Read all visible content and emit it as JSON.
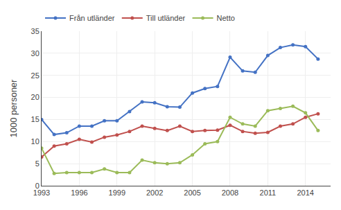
{
  "chart_data": {
    "type": "line",
    "ylabel": "1000 personer",
    "x": [
      1993,
      1994,
      1995,
      1996,
      1997,
      1998,
      1999,
      2000,
      2001,
      2002,
      2003,
      2004,
      2005,
      2006,
      2007,
      2008,
      2009,
      2010,
      2011,
      2012,
      2013,
      2014,
      2015
    ],
    "series": [
      {
        "name": "Från utländer",
        "color": "#4472C4",
        "values": [
          15.0,
          11.6,
          12.0,
          13.5,
          13.5,
          14.7,
          14.7,
          16.8,
          19.0,
          18.8,
          17.9,
          17.8,
          21.0,
          22.0,
          22.5,
          29.1,
          26.0,
          25.7,
          29.5,
          31.3,
          31.9,
          31.5,
          28.7
        ]
      },
      {
        "name": "Till utländer",
        "color": "#C0504D",
        "values": [
          6.5,
          9.0,
          9.5,
          10.5,
          9.9,
          11.0,
          11.5,
          12.3,
          13.5,
          13.0,
          12.5,
          13.5,
          12.3,
          12.5,
          12.6,
          13.7,
          12.3,
          11.9,
          12.1,
          13.5,
          14.0,
          15.5,
          16.3
        ]
      },
      {
        "name": "Netto",
        "color": "#9BBB59",
        "values": [
          8.5,
          2.8,
          3.0,
          3.0,
          3.0,
          3.8,
          3.0,
          3.0,
          5.8,
          5.2,
          5.0,
          5.2,
          7.0,
          9.5,
          10.0,
          15.5,
          14.0,
          13.5,
          17.0,
          17.5,
          18.0,
          16.5,
          12.5
        ]
      }
    ],
    "marker": "circle",
    "xlim": [
      1993,
      2016
    ],
    "xticks": [
      1993,
      1996,
      1999,
      2002,
      2005,
      2008,
      2011,
      2014
    ],
    "ylim": [
      0,
      35
    ],
    "yticks": [
      0,
      5,
      10,
      15,
      20,
      25,
      30,
      35
    ],
    "grid": true,
    "legend": "upper left"
  }
}
